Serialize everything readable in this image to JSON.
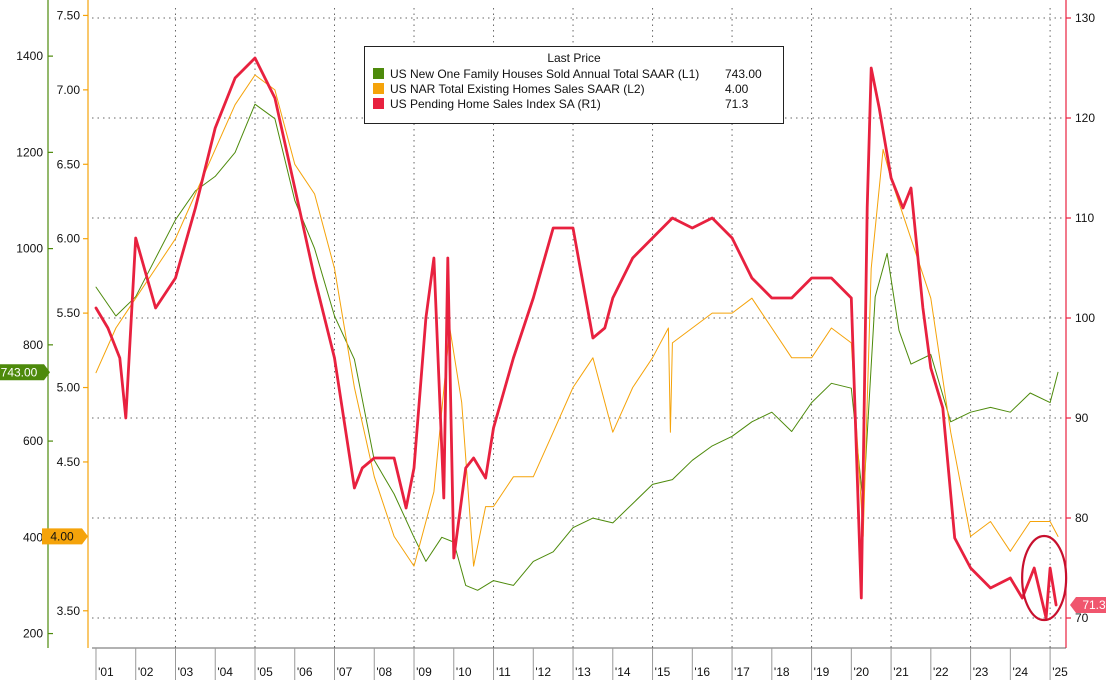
{
  "chart_data": {
    "type": "line",
    "title": "",
    "legend_title": "Last Price",
    "legend_position": "top-center",
    "grid": true,
    "x": {
      "range": [
        2000.9,
        2025.4
      ],
      "ticks": [
        {
          "pos": 2001.25,
          "label": "'01"
        },
        {
          "pos": 2002.25,
          "label": "'02"
        },
        {
          "pos": 2003.25,
          "label": "'03"
        },
        {
          "pos": 2004.25,
          "label": "'04"
        },
        {
          "pos": 2005.25,
          "label": "'05"
        },
        {
          "pos": 2006.25,
          "label": "'06"
        },
        {
          "pos": 2007.25,
          "label": "'07"
        },
        {
          "pos": 2008.25,
          "label": "'08"
        },
        {
          "pos": 2009.25,
          "label": "'09"
        },
        {
          "pos": 2010.25,
          "label": "'10"
        },
        {
          "pos": 2011.25,
          "label": "'11"
        },
        {
          "pos": 2012.25,
          "label": "'12"
        },
        {
          "pos": 2013.25,
          "label": "'13"
        },
        {
          "pos": 2014.25,
          "label": "'14"
        },
        {
          "pos": 2015.25,
          "label": "'15"
        },
        {
          "pos": 2016.25,
          "label": "'16"
        },
        {
          "pos": 2017.25,
          "label": "'17"
        },
        {
          "pos": 2018.25,
          "label": "'18"
        },
        {
          "pos": 2019.25,
          "label": "'19"
        },
        {
          "pos": 2020.25,
          "label": "'20"
        },
        {
          "pos": 2021.25,
          "label": "'21"
        },
        {
          "pos": 2022.25,
          "label": "'22"
        },
        {
          "pos": 2023.25,
          "label": "'23"
        },
        {
          "pos": 2024.25,
          "label": "'24"
        },
        {
          "pos": 2025.25,
          "label": "'25"
        }
      ]
    },
    "axes": {
      "L1": {
        "ylim": [
          170,
          1500
        ],
        "ticks": [
          200,
          400,
          600,
          800,
          1000,
          1200,
          1400
        ],
        "color": "#4d8a0b",
        "tick_labels": [
          "200",
          "400",
          "600",
          "800",
          "1000",
          "1200",
          "1400"
        ]
      },
      "L2": {
        "ylim": [
          3.25,
          7.55
        ],
        "ticks": [
          3.5,
          4.0,
          4.5,
          5.0,
          5.5,
          6.0,
          6.5,
          7.0,
          7.5
        ],
        "color": "#f5a30a",
        "tick_labels": [
          "3.50",
          "4.00",
          "4.50",
          "5.00",
          "5.50",
          "6.00",
          "6.50",
          "7.00",
          "7.50"
        ]
      },
      "R1": {
        "ylim": [
          67,
          131
        ],
        "ticks": [
          70,
          80,
          90,
          100,
          110,
          120,
          130
        ],
        "color": "#e8213f",
        "tick_labels": [
          "70",
          "80",
          "90",
          "100",
          "110",
          "120",
          "130"
        ]
      }
    },
    "series": [
      {
        "name": "US New One Family Houses Sold Annual Total SAAR",
        "axis": "L1",
        "axis_label": "(L1)",
        "last_value": "743.00",
        "color": "#4d8a0b",
        "x": [
          2001.0,
          2001.5,
          2002.0,
          2002.5,
          2003.0,
          2003.5,
          2004.0,
          2004.5,
          2005.0,
          2005.5,
          2006.0,
          2006.5,
          2007.0,
          2007.5,
          2008.0,
          2008.5,
          2009.0,
          2009.3,
          2009.7,
          2010.0,
          2010.3,
          2010.6,
          2011.0,
          2011.5,
          2012.0,
          2012.5,
          2013.0,
          2013.5,
          2014.0,
          2014.5,
          2015.0,
          2015.5,
          2016.0,
          2016.5,
          2017.0,
          2017.5,
          2018.0,
          2018.5,
          2019.0,
          2019.5,
          2020.0,
          2020.3,
          2020.6,
          2020.9,
          2021.2,
          2021.5,
          2022.0,
          2022.5,
          2023.0,
          2023.5,
          2024.0,
          2024.5,
          2025.0,
          2025.2
        ],
        "values": [
          920,
          860,
          900,
          980,
          1060,
          1120,
          1150,
          1200,
          1300,
          1270,
          1100,
          1000,
          860,
          770,
          560,
          490,
          400,
          350,
          400,
          390,
          300,
          290,
          310,
          300,
          350,
          370,
          420,
          440,
          430,
          470,
          510,
          520,
          560,
          590,
          610,
          640,
          660,
          620,
          680,
          720,
          710,
          470,
          900,
          990,
          830,
          760,
          780,
          640,
          660,
          670,
          660,
          700,
          680,
          743
        ]
      },
      {
        "name": "US NAR Total Existing Homes Sales SAAR",
        "axis": "L2",
        "axis_label": "(L2)",
        "last_value": "4.00",
        "color": "#f5a30a",
        "x": [
          2001.0,
          2001.5,
          2002.0,
          2002.5,
          2003.0,
          2003.5,
          2004.0,
          2004.5,
          2005.0,
          2005.5,
          2006.0,
          2006.5,
          2007.0,
          2007.5,
          2008.0,
          2008.5,
          2009.0,
          2009.5,
          2009.9,
          2010.2,
          2010.5,
          2010.8,
          2011.0,
          2011.5,
          2012.0,
          2012.5,
          2013.0,
          2013.5,
          2014.0,
          2014.5,
          2015.0,
          2015.4,
          2015.45,
          2015.5,
          2016.0,
          2016.5,
          2017.0,
          2017.5,
          2018.0,
          2018.5,
          2019.0,
          2019.5,
          2020.0,
          2020.3,
          2020.5,
          2020.8,
          2021.0,
          2021.5,
          2022.0,
          2022.5,
          2023.0,
          2023.5,
          2024.0,
          2024.5,
          2025.0,
          2025.2
        ],
        "values": [
          5.1,
          5.4,
          5.6,
          5.8,
          6.0,
          6.3,
          6.6,
          6.9,
          7.1,
          7.0,
          6.5,
          6.3,
          5.8,
          5.0,
          4.4,
          4.0,
          3.8,
          4.3,
          5.4,
          4.9,
          3.8,
          4.2,
          4.2,
          4.4,
          4.4,
          4.7,
          5.0,
          5.2,
          4.7,
          5.0,
          5.2,
          5.4,
          4.7,
          5.3,
          5.4,
          5.5,
          5.5,
          5.6,
          5.4,
          5.2,
          5.2,
          5.4,
          5.3,
          4.0,
          5.8,
          6.6,
          6.4,
          6.0,
          5.6,
          4.7,
          4.0,
          4.1,
          3.9,
          4.1,
          4.1,
          4.0
        ]
      },
      {
        "name": "US Pending Home Sales Index SA",
        "axis": "R1",
        "axis_label": "(R1)",
        "last_value": "71.3",
        "color": "#e8213f",
        "x": [
          2001.0,
          2001.3,
          2001.6,
          2001.75,
          2002.0,
          2002.5,
          2003.0,
          2003.5,
          2004.0,
          2004.5,
          2005.0,
          2005.5,
          2006.0,
          2006.5,
          2007.0,
          2007.5,
          2007.7,
          2008.0,
          2008.5,
          2008.8,
          2009.0,
          2009.3,
          2009.5,
          2009.75,
          2009.85,
          2010.0,
          2010.3,
          2010.5,
          2010.8,
          2011.0,
          2011.5,
          2012.0,
          2012.5,
          2013.0,
          2013.5,
          2013.8,
          2014.0,
          2014.5,
          2015.0,
          2015.5,
          2016.0,
          2016.5,
          2017.0,
          2017.5,
          2018.0,
          2018.5,
          2019.0,
          2019.5,
          2020.0,
          2020.25,
          2020.4,
          2020.5,
          2020.7,
          2021.0,
          2021.3,
          2021.5,
          2021.8,
          2022.0,
          2022.3,
          2022.6,
          2023.0,
          2023.5,
          2024.0,
          2024.3,
          2024.6,
          2024.9,
          2025.0,
          2025.15
        ],
        "values": [
          101,
          99,
          96,
          90,
          108,
          101,
          104,
          111,
          119,
          124,
          126,
          122,
          113,
          104,
          96,
          83,
          85,
          86,
          86,
          81,
          85,
          100,
          106,
          82,
          106,
          76,
          85,
          86,
          84,
          89,
          96,
          102,
          109,
          109,
          98,
          99,
          102,
          106,
          108,
          110,
          109,
          110,
          108,
          104,
          102,
          102,
          104,
          104,
          102,
          72,
          111,
          125,
          121,
          114,
          111,
          113,
          101,
          95,
          91,
          78,
          75,
          73,
          74,
          72,
          75,
          70,
          75,
          71.3
        ]
      }
    ],
    "annotations": [
      {
        "type": "ellipse",
        "x": 2024.85,
        "y": 74,
        "axis": "R1",
        "color": "#c8102e"
      }
    ],
    "badges": {
      "L1": "743.00",
      "L2": "4.00",
      "R1": "71.3"
    }
  }
}
